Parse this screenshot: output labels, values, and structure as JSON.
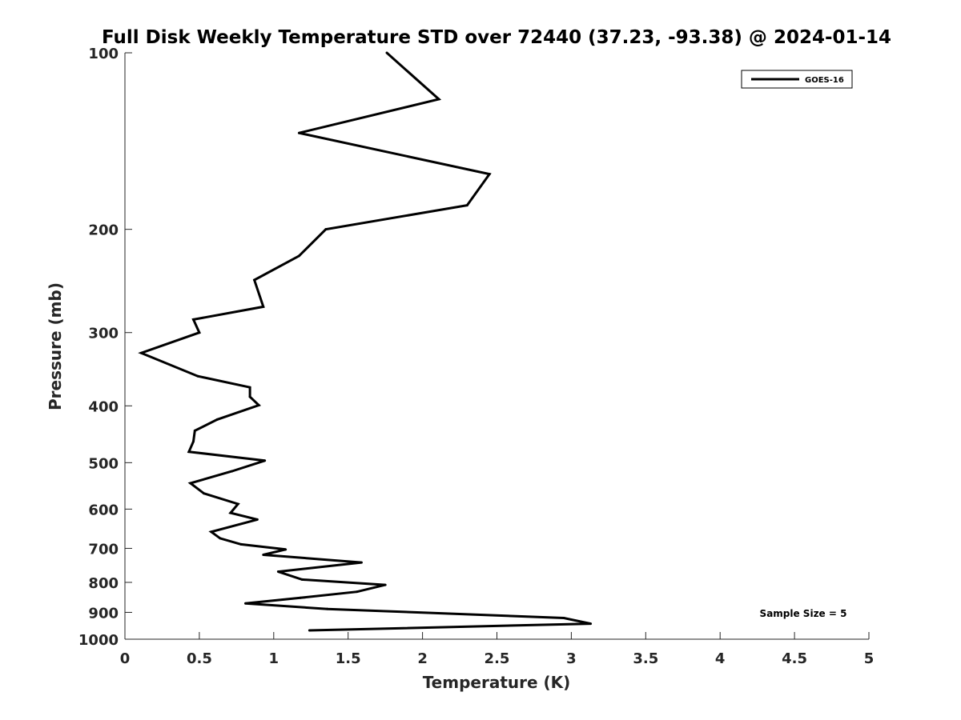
{
  "chart_data": {
    "type": "line",
    "title": "Full Disk Weekly Temperature STD over 72440 (37.23, -93.38) @ 2024-01-14",
    "xlabel": "Temperature (K)",
    "ylabel": "Pressure (mb)",
    "xlim": [
      0,
      5
    ],
    "ylim": [
      100,
      1000
    ],
    "y_scale": "log",
    "y_reversed": true,
    "grid": false,
    "legend_position": "top-right",
    "x_ticks": [
      "0",
      "0.5",
      "1",
      "1.5",
      "2",
      "2.5",
      "3",
      "3.5",
      "4",
      "4.5",
      "5"
    ],
    "y_ticks": [
      "100",
      "200",
      "300",
      "400",
      "500",
      "600",
      "700",
      "800",
      "900",
      "1000"
    ],
    "series": [
      {
        "name": "GOES-16",
        "color": "#000000",
        "points": [
          [
            1.76,
            100
          ],
          [
            2.11,
            120
          ],
          [
            1.17,
            137
          ],
          [
            2.45,
            161
          ],
          [
            2.3,
            182
          ],
          [
            1.35,
            200
          ],
          [
            1.17,
            222
          ],
          [
            0.87,
            244
          ],
          [
            0.93,
            271
          ],
          [
            0.46,
            285
          ],
          [
            0.5,
            300
          ],
          [
            0.11,
            325
          ],
          [
            0.49,
            356
          ],
          [
            0.84,
            372
          ],
          [
            0.84,
            386
          ],
          [
            0.9,
            399
          ],
          [
            0.62,
            422
          ],
          [
            0.47,
            441
          ],
          [
            0.46,
            460
          ],
          [
            0.43,
            479
          ],
          [
            0.94,
            496
          ],
          [
            0.72,
            517
          ],
          [
            0.44,
            542
          ],
          [
            0.53,
            564
          ],
          [
            0.76,
            588
          ],
          [
            0.71,
            609
          ],
          [
            0.89,
            625
          ],
          [
            0.58,
            656
          ],
          [
            0.64,
            673
          ],
          [
            0.78,
            689
          ],
          [
            1.08,
            703
          ],
          [
            0.93,
            718
          ],
          [
            1.59,
            740
          ],
          [
            1.03,
            767
          ],
          [
            1.19,
            791
          ],
          [
            1.75,
            808
          ],
          [
            1.56,
            830
          ],
          [
            1.18,
            850
          ],
          [
            0.81,
            869
          ],
          [
            1.36,
            888
          ],
          [
            2.95,
            920
          ],
          [
            3.13,
            941
          ],
          [
            1.24,
            966
          ]
        ]
      }
    ],
    "annotation": "Sample Size = 5"
  }
}
